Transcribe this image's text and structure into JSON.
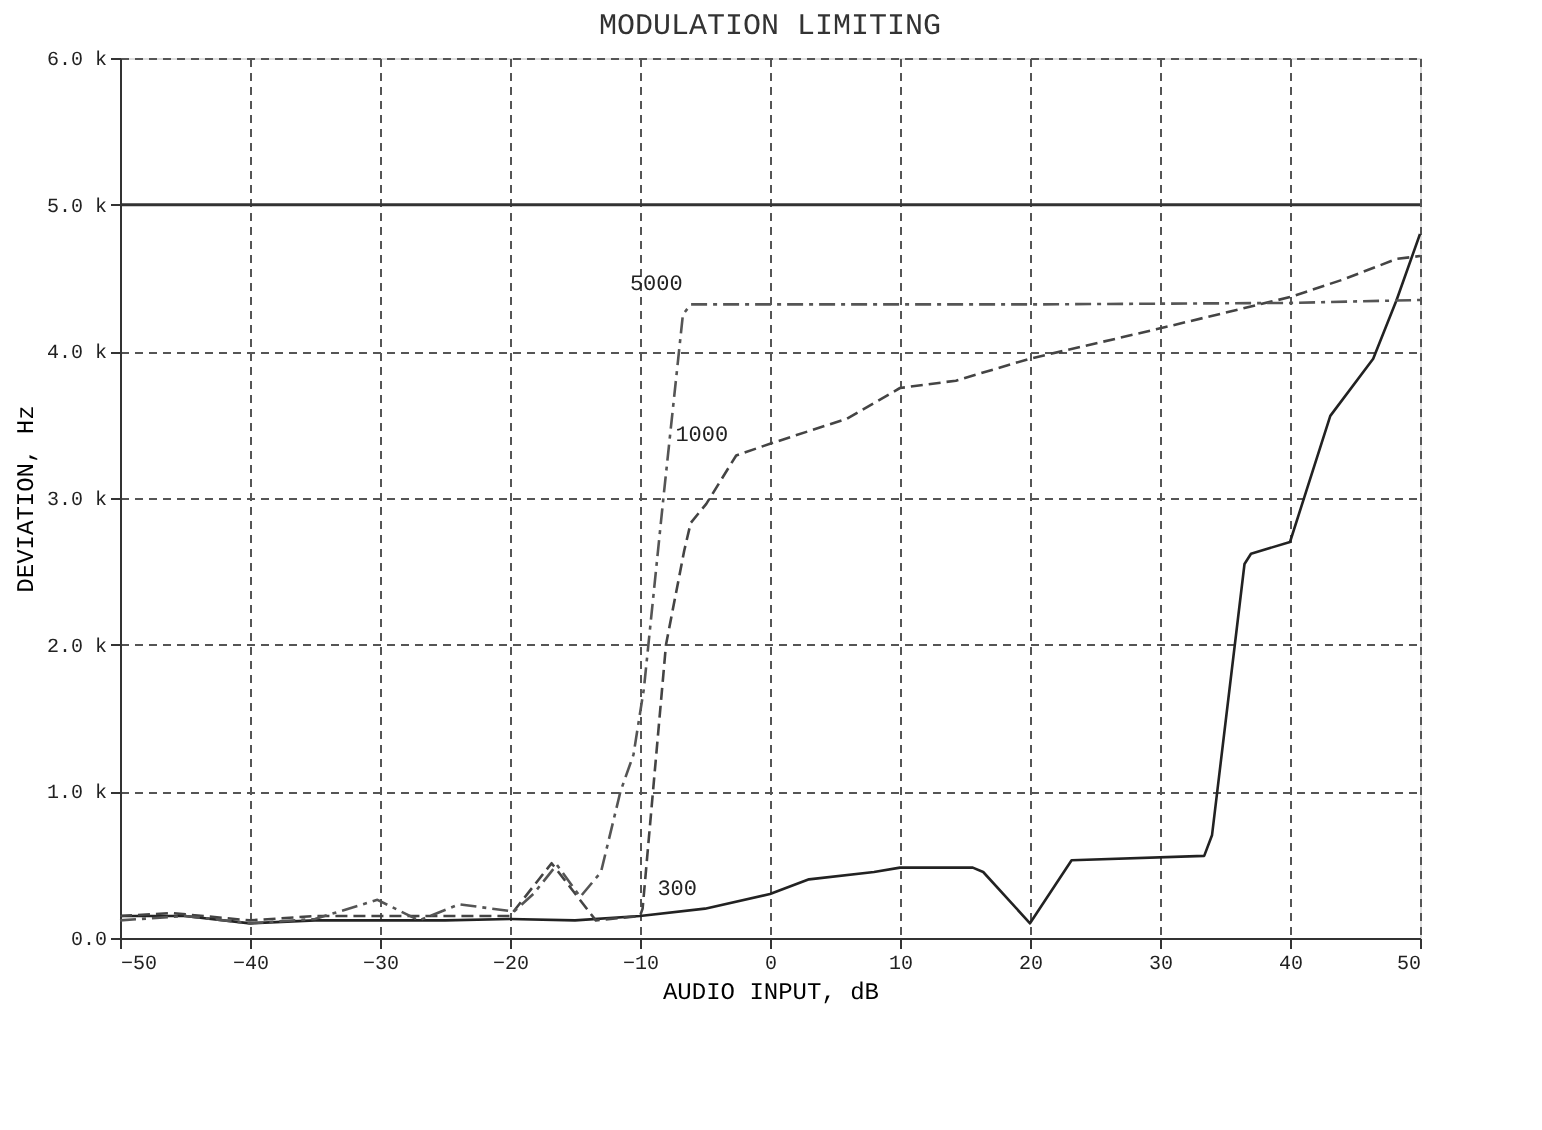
{
  "chart_data": {
    "type": "line",
    "title": "MODULATION LIMITING",
    "xlabel": "AUDIO INPUT, dB",
    "ylabel": "DEVIATION, Hz",
    "xlim": [
      -50,
      50
    ],
    "xticks": [
      -50,
      -40,
      -30,
      -20,
      -10,
      0,
      10,
      20,
      30,
      40,
      50
    ],
    "ylim": [
      0,
      6000
    ],
    "yticks": [
      {
        "value": 0,
        "label": "0.0"
      },
      {
        "value": 1000,
        "label": "1.0 k"
      },
      {
        "value": 2000,
        "label": "2.0 k"
      },
      {
        "value": 3000,
        "label": "3.0 k"
      },
      {
        "value": 4000,
        "label": "4.0 k"
      },
      {
        "value": 5000,
        "label": "5.0 k"
      },
      {
        "value": 6000,
        "label": "6.0 k"
      }
    ],
    "grid": true,
    "marker": "none",
    "ref_lines": [
      {
        "axis": "y",
        "value": 5000,
        "color": "#333333",
        "line_style": "solid"
      }
    ],
    "series": [
      {
        "color": "#222222",
        "line_style": "solid",
        "x": [
          -50,
          -45,
          -40,
          -35,
          -30,
          -25,
          -20,
          -15,
          -10,
          -5,
          0,
          3,
          8,
          10,
          15.6,
          16.4,
          20,
          23.2,
          33.4,
          34,
          36.5,
          37,
          40,
          43.1,
          46.4,
          48.2,
          50
        ],
        "values": [
          150,
          150,
          100,
          120,
          120,
          120,
          130,
          120,
          150,
          200,
          300,
          400,
          450,
          480,
          480,
          450,
          100,
          530,
          560,
          700,
          2550,
          2620,
          2700,
          3560,
          3950,
          4350,
          4800
        ]
      },
      {
        "color": "#444444",
        "line_style": "dashed",
        "x": [
          -50,
          -46,
          -40,
          -35,
          -30,
          -20,
          -16.8,
          -13.4,
          -10,
          -9.8,
          -8,
          -6.6,
          -6.1,
          -4.9,
          -2.6,
          0,
          5.9,
          10,
          14.3,
          20,
          29.7,
          40,
          44.1,
          48.2,
          50
        ],
        "values": [
          150,
          170,
          120,
          150,
          150,
          150,
          510,
          120,
          150,
          200,
          2000,
          2640,
          2830,
          2960,
          3290,
          3370,
          3540,
          3750,
          3800,
          3950,
          4150,
          4370,
          4490,
          4630,
          4650
        ]
      },
      {
        "color": "#555555",
        "line_style": "dotted",
        "x": [
          -50,
          -45,
          -40,
          -35,
          -30.2,
          -27,
          -23.9,
          -19.7,
          -18.2,
          -16.4,
          -14.6,
          -13,
          -11.5,
          -10.5,
          -9.7,
          -8.2,
          -7,
          -6.7,
          -6.1,
          0,
          20,
          40,
          50
        ],
        "values": [
          120,
          150,
          100,
          130,
          260,
          120,
          230,
          180,
          300,
          500,
          280,
          450,
          1000,
          1250,
          1700,
          3000,
          4000,
          4250,
          4320,
          4320,
          4320,
          4330,
          4350
        ]
      }
    ],
    "annotations": [
      {
        "text": "5000",
        "x": -6.1,
        "y": 4320
      },
      {
        "text": "1000",
        "x": -2.6,
        "y": 3290
      },
      {
        "text": "300",
        "x": -5,
        "y": 200
      }
    ]
  }
}
